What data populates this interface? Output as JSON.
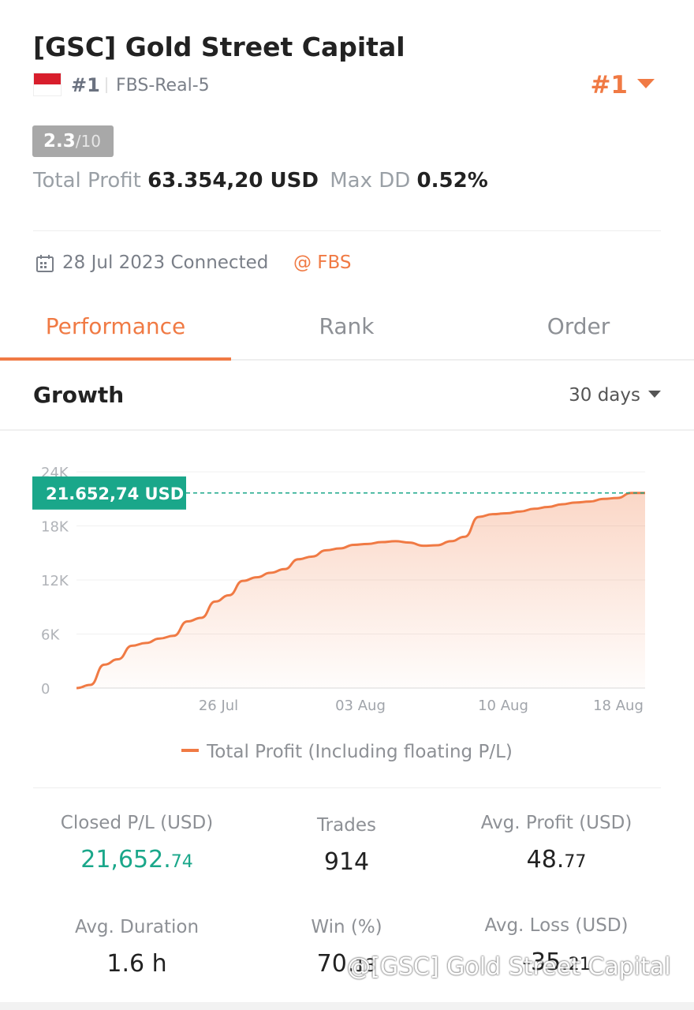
{
  "header": {
    "title": "[GSC] Gold Street Capital",
    "rank_small": "#1",
    "server": "FBS-Real-5",
    "rank_big": "#1",
    "score": "2.3",
    "score_den": "/10",
    "total_profit_label": "Total Profit",
    "total_profit_value": "63.354,20 USD",
    "max_dd_label": "Max DD",
    "max_dd_value": "0.52%",
    "connected": "28 Jul 2023 Connected",
    "broker": "@ FBS"
  },
  "tabs": [
    {
      "label": "Performance",
      "active": true
    },
    {
      "label": "Rank",
      "active": false
    },
    {
      "label": "Order",
      "active": false
    }
  ],
  "growth": {
    "title": "Growth",
    "range": "30 days"
  },
  "chart_data": {
    "type": "area",
    "current_value_label": "21.652,74 USD",
    "current_value": 21652.74,
    "ylim": [
      0,
      24000
    ],
    "y_ticks": [
      "0",
      "6K",
      "12K",
      "18K",
      "24K"
    ],
    "x_ticks": [
      "26 Jul",
      "03 Aug",
      "10 Aug",
      "18 Aug"
    ],
    "series": [
      {
        "name": "Total Profit (Including floating P/L)",
        "values": [
          0,
          350,
          2600,
          3200,
          4700,
          5000,
          5500,
          5800,
          7400,
          7800,
          9600,
          10300,
          11900,
          12300,
          12800,
          13200,
          14300,
          14600,
          15300,
          15500,
          15900,
          16000,
          16200,
          16300,
          16150,
          15800,
          15850,
          16300,
          16800,
          19000,
          19300,
          19400,
          19600,
          19900,
          20100,
          20400,
          20600,
          20700,
          21000,
          21100,
          21652.74,
          21652.74
        ]
      }
    ],
    "accent_color": "#f07a44",
    "label_color": "#1aa78a"
  },
  "legend": {
    "label": "Total Profit (Including floating P/L)"
  },
  "stats": [
    {
      "label": "Closed P/L (USD)",
      "value_main": "21,652.",
      "value_small": "74",
      "color": "green"
    },
    {
      "label": "Trades",
      "value_main": "914",
      "value_small": ""
    },
    {
      "label": "Avg. Profit (USD)",
      "value_main": "48.",
      "value_small": "77"
    },
    {
      "label": "Avg. Duration",
      "value_main": "1.6 h",
      "value_small": ""
    },
    {
      "label": "Win (%)",
      "value_main": "70.",
      "value_small": "13"
    },
    {
      "label": "Avg. Loss (USD)",
      "value_main": "-35.",
      "value_small": "21"
    }
  ],
  "watermark": "@[GSC] Gold Street Capital"
}
